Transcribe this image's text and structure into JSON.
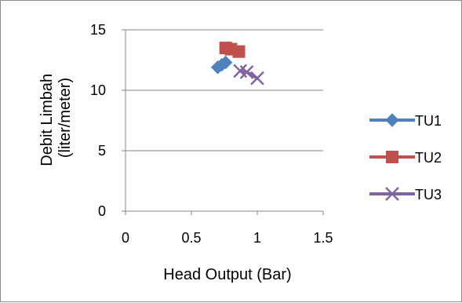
{
  "chart_data": {
    "type": "scatter",
    "title": "",
    "xlabel": "Head Output (Bar)",
    "ylabel_line1": "Debit Limbah",
    "ylabel_line2": "(liter/meter)",
    "xlim": [
      0,
      1.5
    ],
    "ylim": [
      0,
      15
    ],
    "x_ticks": [
      0,
      0.5,
      1,
      1.5
    ],
    "y_ticks": [
      0,
      5,
      10,
      15
    ],
    "x_tick_labels": [
      "0",
      "0.5",
      "1",
      "1.5"
    ],
    "y_tick_labels": [
      "0",
      "5",
      "10",
      "15"
    ],
    "grid": "horizontal",
    "legend_position": "right",
    "series": [
      {
        "name": "TU1",
        "color": "#4f81bd",
        "marker": "diamond",
        "points": [
          {
            "x": 0.7,
            "y": 11.9
          },
          {
            "x": 0.73,
            "y": 12.1
          },
          {
            "x": 0.76,
            "y": 12.3
          }
        ]
      },
      {
        "name": "TU2",
        "color": "#c0504d",
        "marker": "square",
        "points": [
          {
            "x": 0.76,
            "y": 13.5
          },
          {
            "x": 0.8,
            "y": 13.4
          },
          {
            "x": 0.86,
            "y": 13.2
          }
        ]
      },
      {
        "name": "TU3",
        "color": "#8064a2",
        "marker": "x",
        "points": [
          {
            "x": 0.87,
            "y": 11.6
          },
          {
            "x": 0.92,
            "y": 11.5
          },
          {
            "x": 1.0,
            "y": 11.0
          }
        ]
      }
    ]
  }
}
